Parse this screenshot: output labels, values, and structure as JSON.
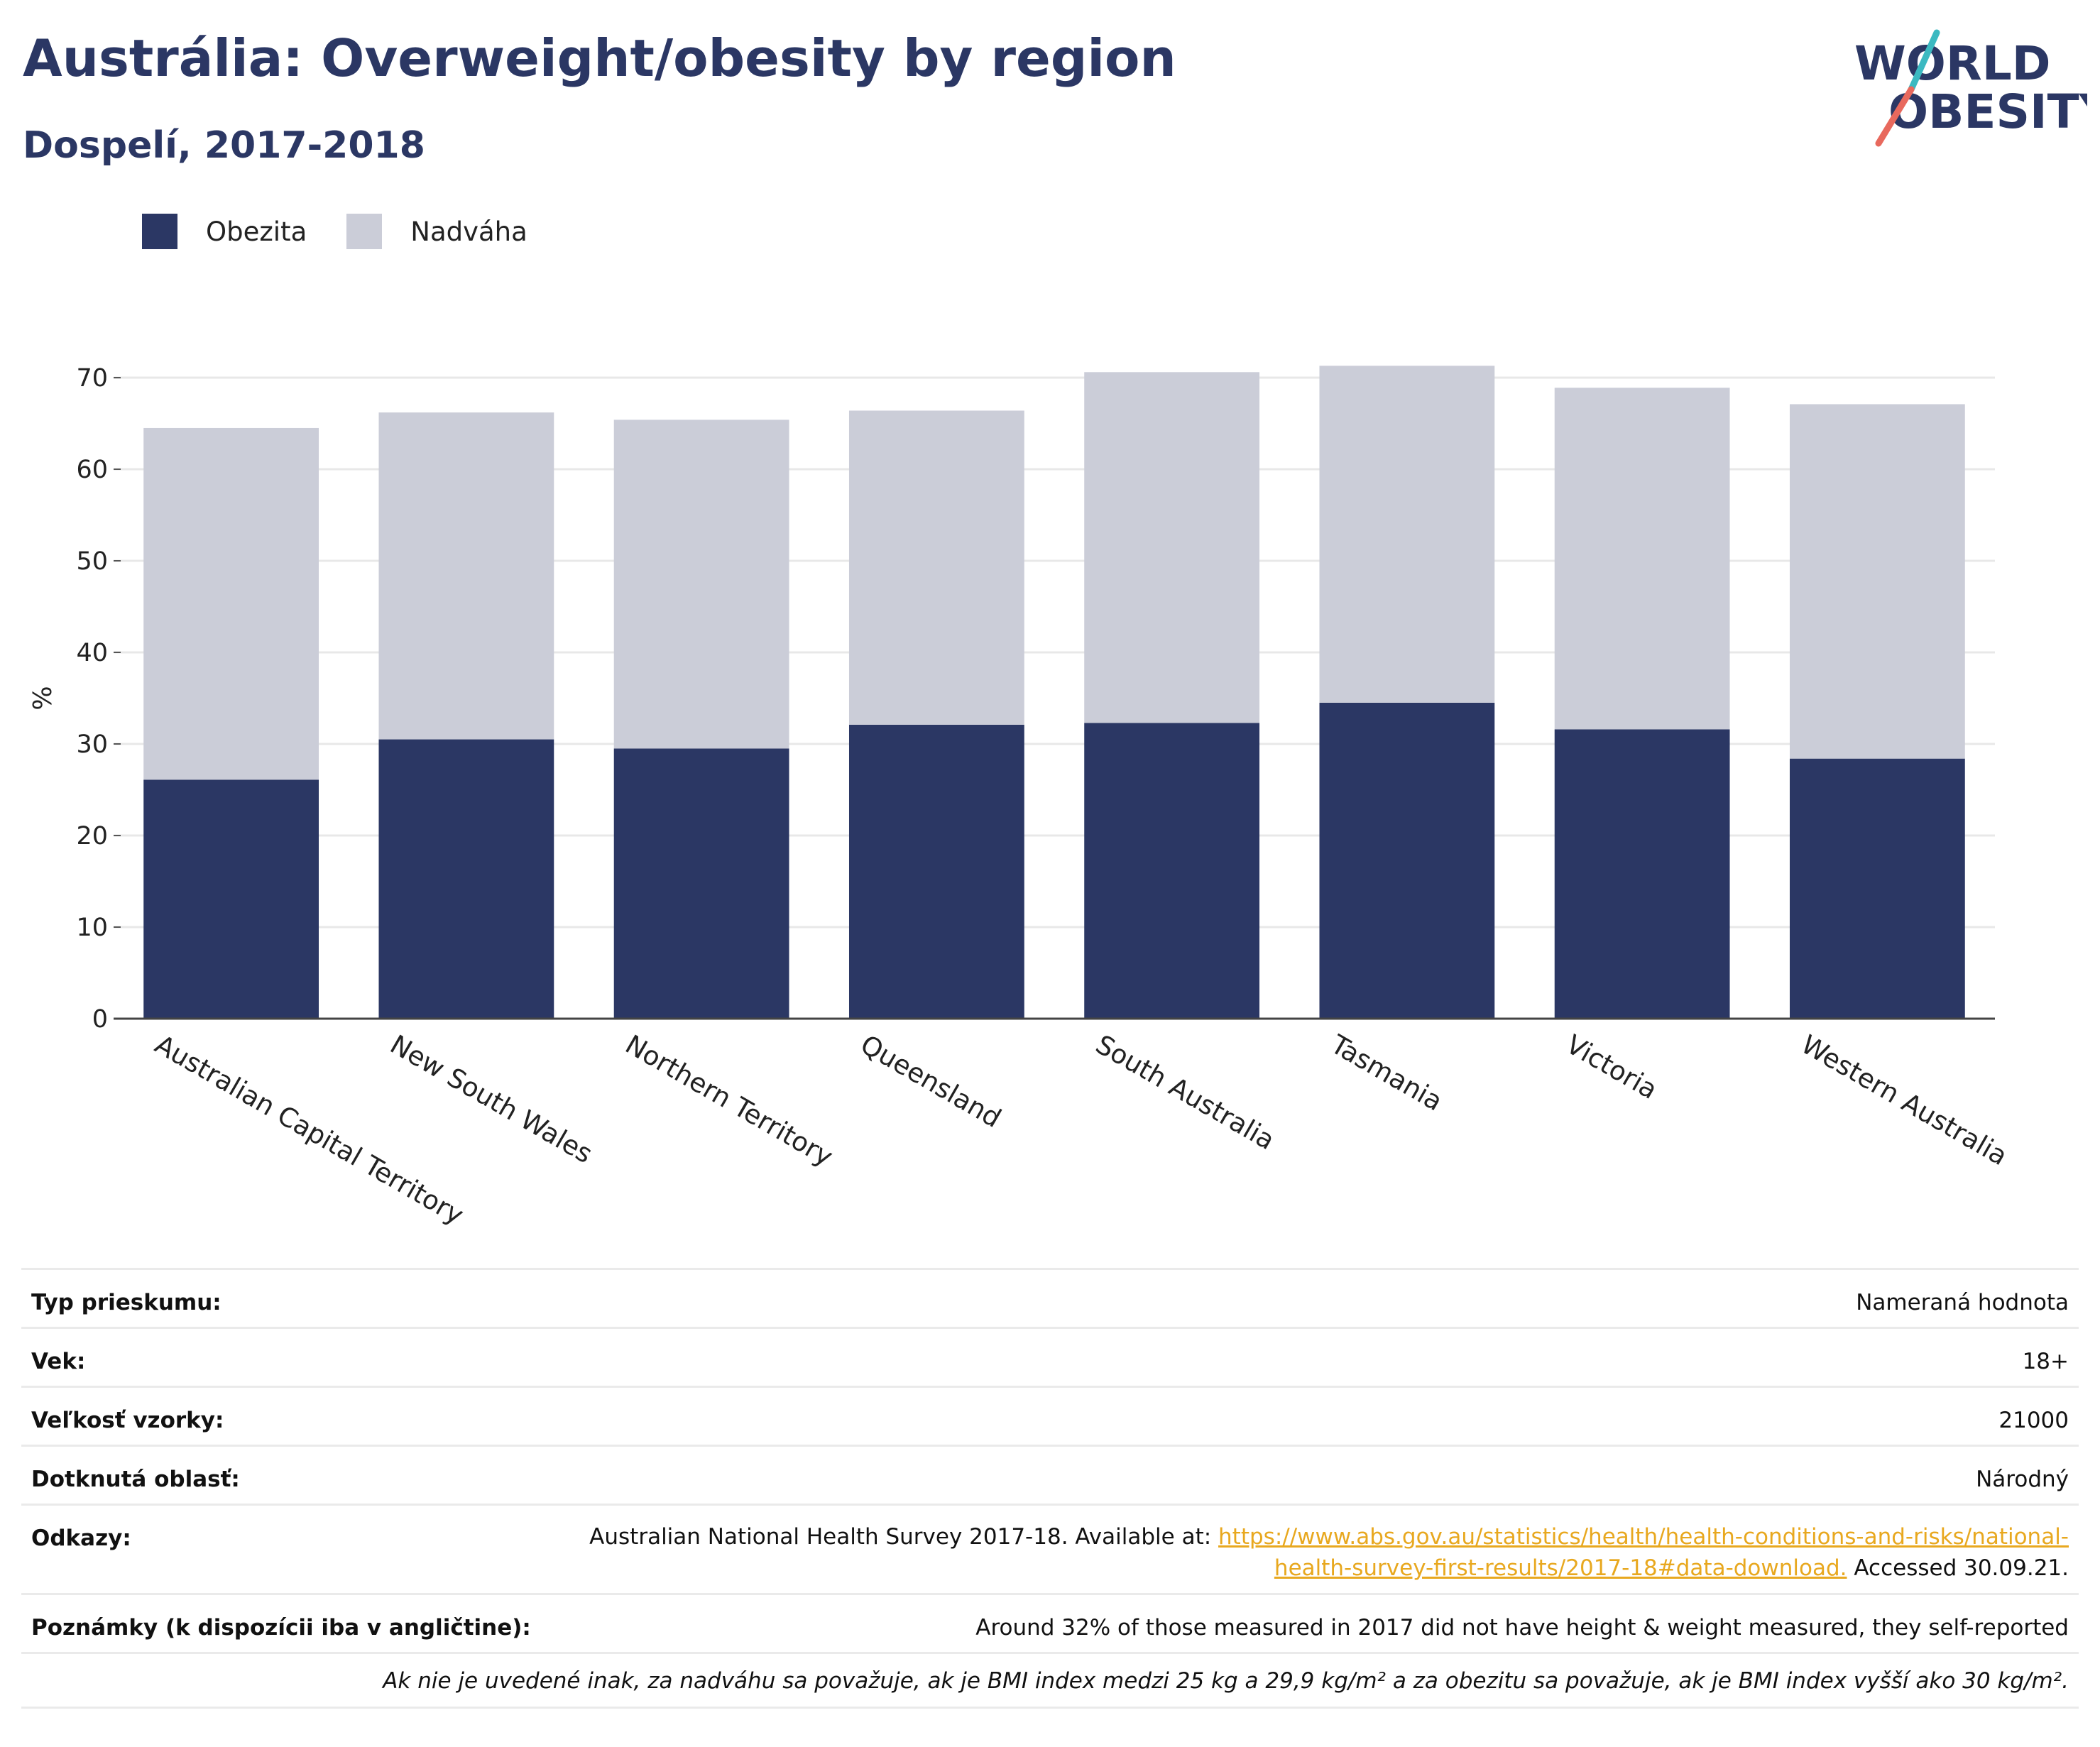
{
  "title": "Austrália: Overweight/obesity by region",
  "subtitle": "Dospelí, 2017-2018",
  "logo": {
    "line1": "WORLD",
    "line2": "OBESITY"
  },
  "colors": {
    "obesity": "#2b3764",
    "overweight": "#cbcdd8",
    "accent_teal": "#3bb9c1",
    "accent_coral": "#e8695d",
    "link": "#e8a81f"
  },
  "legend": [
    {
      "label": "Obezita",
      "color": "#2b3764"
    },
    {
      "label": "Nadváha",
      "color": "#cbcdd8"
    }
  ],
  "chart_data": {
    "type": "bar",
    "stacked": true,
    "ylabel": "%",
    "ylim": [
      0,
      70
    ],
    "yticks": [
      0,
      10,
      20,
      30,
      40,
      50,
      60,
      70
    ],
    "grid": true,
    "categories": [
      "Australian Capital Territory",
      "New South Wales",
      "Northern Territory",
      "Queensland",
      "South Australia",
      "Tasmania",
      "Victoria",
      "Western Australia"
    ],
    "series": [
      {
        "name": "Obezita",
        "color": "#2b3764",
        "values": [
          26.1,
          30.5,
          29.5,
          32.1,
          32.3,
          34.5,
          31.6,
          28.4
        ]
      },
      {
        "name": "Nadváha",
        "color": "#cbcdd8",
        "values": [
          38.4,
          35.7,
          35.9,
          34.3,
          38.3,
          36.8,
          37.3,
          38.7
        ]
      }
    ]
  },
  "info": {
    "survey_type": {
      "label": "Typ prieskumu:",
      "value": "Nameraná hodnota"
    },
    "age": {
      "label": "Vek:",
      "value": "18+"
    },
    "sample_size": {
      "label": "Veľkosť vzorky:",
      "value": "21000"
    },
    "area": {
      "label": "Dotknutá oblasť:",
      "value": "Národný"
    },
    "references": {
      "label": "Odkazy:",
      "text_before": "Australian National Health Survey 2017-18. Available at: ",
      "link_line1": "https://www.abs.gov.au/statistics/health/health-conditions-and-risks/national-",
      "link_line2": "health-survey-first-results/2017-18#data-download.",
      "text_after": " Accessed 30.09.21."
    },
    "notes": {
      "label": "Poznámky (k dispozícii iba v angličtine):",
      "value": "Around 32% of those measured in 2017 did not have height & weight measured, they self-reported"
    },
    "footnote": "Ak nie je uvedené inak, za nadváhu sa považuje, ak je BMI index medzi 25 kg a 29,9 kg/m² a za obezitu sa považuje, ak je BMI index vyšší ako 30 kg/m²."
  }
}
